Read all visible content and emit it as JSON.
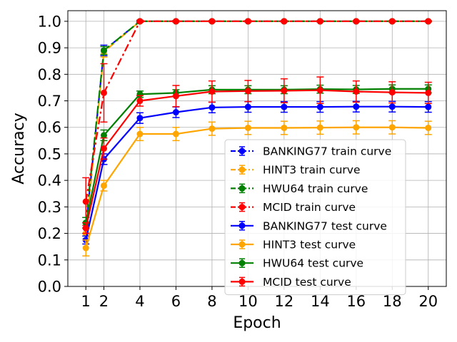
{
  "chart_data": {
    "type": "line",
    "title": "",
    "xlabel": "Epoch",
    "ylabel": "Accuracy",
    "xlim": [
      0.0,
      21.0
    ],
    "ylim": [
      0.0,
      1.04
    ],
    "xticks": [
      1,
      2,
      4,
      6,
      8,
      10,
      12,
      14,
      16,
      18,
      20
    ],
    "xtick_labels": [
      "1",
      "2",
      "4",
      "6",
      "8",
      "10",
      "12",
      "14",
      "16",
      "18",
      "20"
    ],
    "yticks": [
      0.0,
      0.1,
      0.2,
      0.3,
      0.4,
      0.5,
      0.6,
      0.7,
      0.8,
      0.9,
      1.0
    ],
    "ytick_labels": [
      "0.0",
      "0.1",
      "0.2",
      "0.3",
      "0.4",
      "0.5",
      "0.6",
      "0.7",
      "0.8",
      "0.9",
      "1.0"
    ],
    "grid": true,
    "legend_position": "bottom-right",
    "x": [
      1,
      2,
      4,
      6,
      8,
      10,
      12,
      14,
      16,
      18,
      20
    ],
    "series": [
      {
        "name": "BANKING77 train curve",
        "color": "#0000ff",
        "style": "dashdot",
        "values": [
          0.22,
          0.89,
          1.0,
          1.0,
          1.0,
          1.0,
          1.0,
          1.0,
          1.0,
          1.0,
          1.0
        ],
        "errors": [
          0.02,
          0.02,
          0.003,
          0.002,
          0.002,
          0.002,
          0.002,
          0.002,
          0.002,
          0.002,
          0.002
        ]
      },
      {
        "name": "HINT3 train curve",
        "color": "#ffa500",
        "style": "dashdot",
        "values": [
          0.2,
          0.885,
          1.0,
          1.0,
          1.0,
          1.0,
          1.0,
          1.0,
          1.0,
          1.0,
          1.0
        ],
        "errors": [
          0.02,
          0.02,
          0.003,
          0.002,
          0.002,
          0.002,
          0.002,
          0.002,
          0.002,
          0.002,
          0.002
        ]
      },
      {
        "name": "HWU64 train curve",
        "color": "#008000",
        "style": "dashdot",
        "values": [
          0.24,
          0.89,
          1.0,
          1.0,
          1.0,
          1.0,
          1.0,
          1.0,
          1.0,
          1.0,
          1.0
        ],
        "errors": [
          0.02,
          0.015,
          0.003,
          0.002,
          0.002,
          0.002,
          0.002,
          0.002,
          0.002,
          0.002,
          0.002
        ]
      },
      {
        "name": "MCID train curve",
        "color": "#ff0000",
        "style": "dashdot",
        "values": [
          0.32,
          0.73,
          1.0,
          1.0,
          1.0,
          1.0,
          1.0,
          1.0,
          1.0,
          1.0,
          1.0
        ],
        "errors": [
          0.09,
          0.11,
          0.004,
          0.003,
          0.002,
          0.002,
          0.002,
          0.002,
          0.002,
          0.002,
          0.002
        ]
      },
      {
        "name": "BANKING77 test curve",
        "color": "#0000ff",
        "style": "solid",
        "values": [
          0.175,
          0.48,
          0.635,
          0.657,
          0.675,
          0.677,
          0.677,
          0.677,
          0.678,
          0.678,
          0.677
        ],
        "errors": [
          0.015,
          0.02,
          0.02,
          0.02,
          0.02,
          0.02,
          0.02,
          0.02,
          0.02,
          0.02,
          0.02
        ]
      },
      {
        "name": "HINT3 test curve",
        "color": "#ffa500",
        "style": "solid",
        "values": [
          0.145,
          0.38,
          0.575,
          0.575,
          0.595,
          0.598,
          0.598,
          0.599,
          0.6,
          0.6,
          0.598
        ],
        "errors": [
          0.03,
          0.02,
          0.025,
          0.025,
          0.025,
          0.025,
          0.025,
          0.025,
          0.025,
          0.025,
          0.025
        ]
      },
      {
        "name": "HWU64 test curve",
        "color": "#008000",
        "style": "solid",
        "values": [
          0.24,
          0.57,
          0.725,
          0.73,
          0.742,
          0.742,
          0.742,
          0.744,
          0.743,
          0.745,
          0.745
        ],
        "errors": [
          0.02,
          0.02,
          0.012,
          0.012,
          0.015,
          0.015,
          0.015,
          0.015,
          0.015,
          0.015,
          0.015
        ]
      },
      {
        "name": "MCID test curve",
        "color": "#ff0000",
        "style": "solid",
        "values": [
          0.22,
          0.52,
          0.7,
          0.718,
          0.735,
          0.737,
          0.738,
          0.74,
          0.735,
          0.732,
          0.73
        ],
        "errors": [
          0.02,
          0.04,
          0.02,
          0.04,
          0.04,
          0.04,
          0.045,
          0.05,
          0.04,
          0.04,
          0.04
        ]
      }
    ]
  }
}
